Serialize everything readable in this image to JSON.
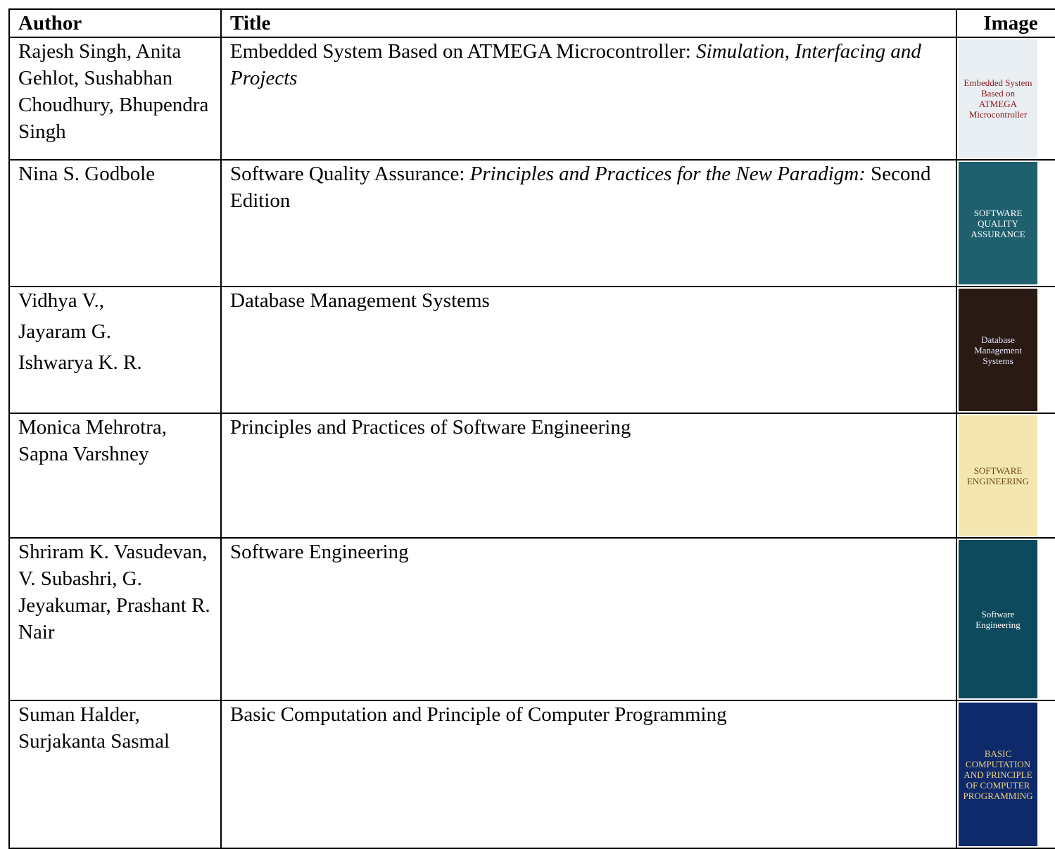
{
  "table": {
    "header": [
      "Author",
      "Title",
      "Image"
    ],
    "rows": [
      {
        "author": [
          "Rajesh Singh, Anita Gehlot, Sushabhan Choudhury, Bhupendra Singh"
        ],
        "title": [
          {
            "text": "Embedded System Based on ATMEGA Microcontroller: ",
            "italic": false
          },
          {
            "text": "Simulation, Interfacing and Projects",
            "italic": true
          }
        ],
        "cover": "Embedded System Based on ATMEGA Microcontroller",
        "cover_color": "#e9eef2",
        "cover_text_color": "#8b1a1a"
      },
      {
        "author": [
          "Nina S. Godbole"
        ],
        "title": [
          {
            "text": "Software Quality Assurance: ",
            "italic": false
          },
          {
            "text": "Principles and Practices for the New Paradigm:",
            "italic": true
          },
          {
            "text": "  Second Edition",
            "italic": false
          }
        ],
        "cover": "SOFTWARE QUALITY ASSURANCE",
        "cover_color": "#1f5f6e",
        "cover_text_color": "#ffffff"
      },
      {
        "author": [
          "Vidhya V.,",
          "Jayaram G.",
          "Ishwarya K. R."
        ],
        "title": [
          {
            "text": "Database Management Systems",
            "italic": false
          }
        ],
        "cover": "Database Management Systems",
        "cover_color": "#2a1a14",
        "cover_text_color": "#e8e8ff"
      },
      {
        "author": [
          "Monica Mehrotra,  Sapna Varshney"
        ],
        "title": [
          {
            "text": "Principles and Practices of Software Engineering",
            "italic": false
          }
        ],
        "cover": "SOFTWARE ENGINEERING",
        "cover_color": "#f3e6b0",
        "cover_text_color": "#6a4a10"
      },
      {
        "author": [
          "Shriram K. Vasudevan, V. Subashri, G. Jeyakumar,  Prashant R. Nair"
        ],
        "title": [
          {
            "text": "Software Engineering",
            "italic": false
          }
        ],
        "cover": "Software Engineering",
        "cover_color": "#0d4a5e",
        "cover_text_color": "#ffffff"
      },
      {
        "author": [
          "Suman Halder,  Surjakanta Sasmal"
        ],
        "title": [
          {
            "text": "Basic Computation and Principle of Computer Programming",
            "italic": false
          }
        ],
        "cover": "BASIC COMPUTATION AND PRINCIPLE OF COMPUTER PROGRAMMING",
        "cover_color": "#0e2a6a",
        "cover_text_color": "#f0d080"
      }
    ]
  }
}
